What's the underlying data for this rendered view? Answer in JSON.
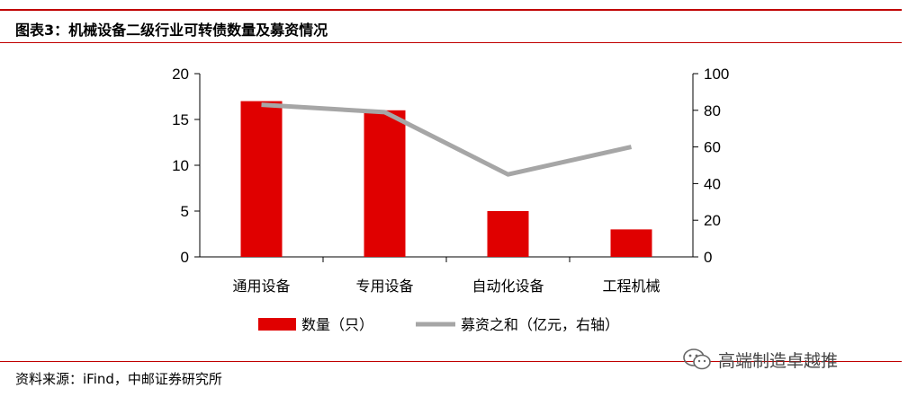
{
  "header": {
    "title": "图表3：机械设备二级行业可转债数量及募资情况"
  },
  "footer": {
    "source": "资料来源：iFind，中邮证券研究所"
  },
  "watermark": {
    "text": "高端制造卓越推",
    "icon": "wechat-icon"
  },
  "colors": {
    "accent": "#c00000",
    "bar": "#e00000",
    "line": "#a6a6a6"
  },
  "chart_data": {
    "type": "bar",
    "categories": [
      "通用设备",
      "专用设备",
      "自动化设备",
      "工程机械"
    ],
    "series": [
      {
        "name": "数量（只）",
        "type": "bar",
        "axis": "left",
        "values": [
          17,
          16,
          5,
          3
        ]
      },
      {
        "name": "募资之和（亿元，右轴）",
        "type": "line",
        "axis": "right",
        "values": [
          83,
          79,
          45,
          60
        ]
      }
    ],
    "y_left": {
      "min": 0,
      "max": 20,
      "ticks": [
        0,
        5,
        10,
        15,
        20
      ]
    },
    "y_right": {
      "min": 0,
      "max": 100,
      "ticks": [
        0,
        20,
        40,
        60,
        80,
        100
      ]
    },
    "legend_position": "bottom",
    "grid": false
  }
}
